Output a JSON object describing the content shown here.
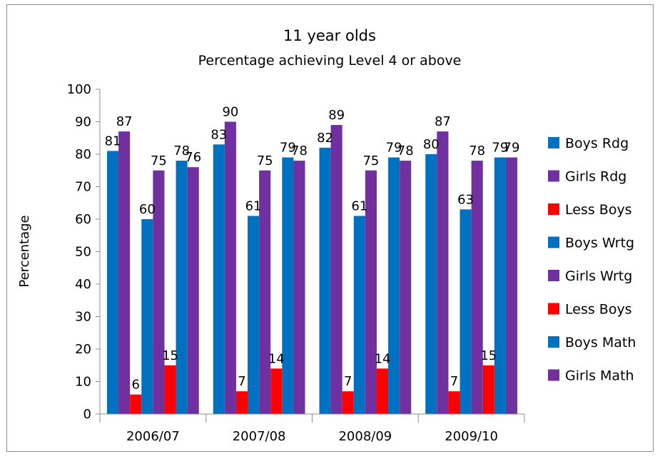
{
  "chart_data": {
    "type": "bar",
    "title": "11 year olds",
    "subtitle": "Percentage achieving Level  4 or above",
    "ylabel": "Percentage",
    "xlabel": "",
    "ylim": [
      0,
      100
    ],
    "yticks": [
      0,
      10,
      20,
      30,
      40,
      50,
      60,
      70,
      80,
      90,
      100
    ],
    "grid": false,
    "legend_position": "right",
    "categories": [
      "2006/07",
      "2007/08",
      "2008/09",
      "2009/10"
    ],
    "series": [
      {
        "name": "Boys Rdg",
        "color": "#0070c0",
        "values": [
          81,
          83,
          82,
          80
        ],
        "labels": [
          "81",
          "83",
          "82",
          "80"
        ]
      },
      {
        "name": "Girls Rdg",
        "color": "#7030a0",
        "values": [
          87,
          90,
          89,
          87
        ],
        "labels": [
          "87",
          "90",
          "89",
          "87"
        ]
      },
      {
        "name": "Less Boys",
        "color": "#ff0000",
        "values": [
          6,
          7,
          7,
          7
        ],
        "labels": [
          "6",
          "7",
          "7",
          "7"
        ]
      },
      {
        "name": "Boys Wrtg",
        "color": "#0070c0",
        "values": [
          60,
          61,
          61,
          63
        ],
        "labels": [
          "60",
          "61",
          "61",
          "63"
        ]
      },
      {
        "name": "Girls Wrtg",
        "color": "#7030a0",
        "values": [
          75,
          75,
          75,
          78
        ],
        "labels": [
          "75",
          "75",
          "75",
          "78"
        ]
      },
      {
        "name": "Less Boys",
        "color": "#ff0000",
        "values": [
          15,
          14,
          14,
          15
        ],
        "labels": [
          "15",
          "14",
          "14",
          "15"
        ]
      },
      {
        "name": "Boys Math",
        "color": "#0070c0",
        "values": [
          78,
          79,
          79,
          79
        ],
        "labels": [
          "78",
          "79",
          "79",
          "79"
        ]
      },
      {
        "name": "Girls Math",
        "color": "#7030a0",
        "values": [
          76,
          78,
          78,
          79
        ],
        "labels": [
          "76",
          "78",
          "78",
          "79"
        ]
      }
    ]
  }
}
